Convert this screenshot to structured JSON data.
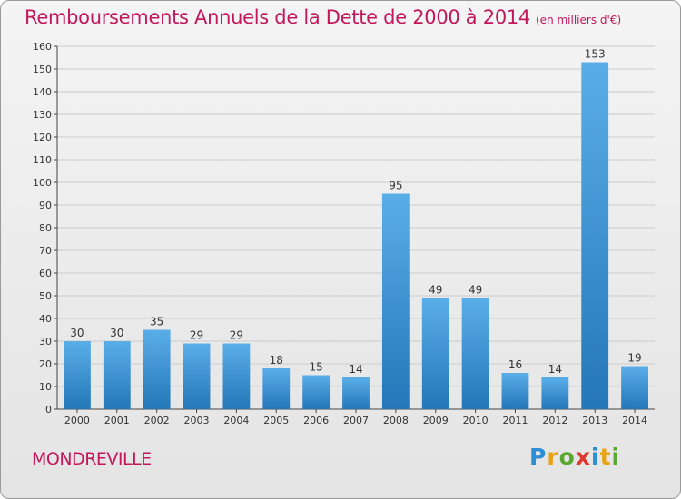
{
  "header": {
    "title": "Remboursements Annuels de la Dette de 2000 à 2014",
    "unit": "(en milliers d'€)"
  },
  "footer": {
    "commune": "MONDREVILLE",
    "logo_letters": [
      "P",
      "r",
      "o",
      "x",
      "i",
      "t",
      "i"
    ]
  },
  "colors": {
    "title": "#c2185b",
    "bar_top": "#5aaee8",
    "bar_bottom": "#2477b8",
    "grid": "#cccccc"
  },
  "chart_data": {
    "type": "bar",
    "title": "Remboursements Annuels de la Dette de 2000 à 2014",
    "xlabel": "",
    "ylabel": "",
    "categories": [
      "2000",
      "2001",
      "2002",
      "2003",
      "2004",
      "2005",
      "2006",
      "2007",
      "2008",
      "2009",
      "2010",
      "2011",
      "2012",
      "2013",
      "2014"
    ],
    "values": [
      30,
      30,
      35,
      29,
      29,
      18,
      15,
      14,
      95,
      49,
      49,
      16,
      14,
      153,
      19
    ],
    "ylim": [
      0,
      160
    ],
    "yticks": [
      0,
      10,
      20,
      30,
      40,
      50,
      60,
      70,
      80,
      90,
      100,
      110,
      120,
      130,
      140,
      150,
      160
    ],
    "grid": true,
    "legend": "none"
  }
}
